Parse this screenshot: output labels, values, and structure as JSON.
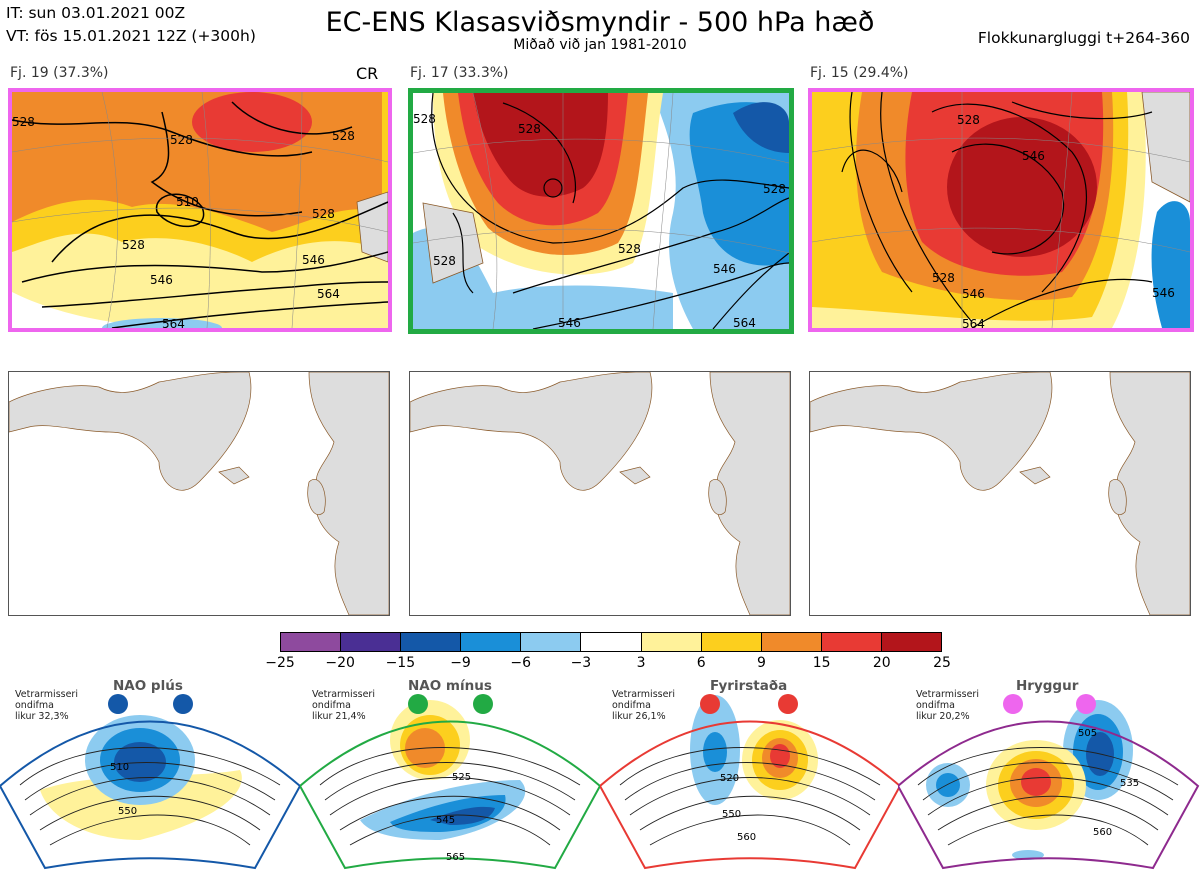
{
  "header": {
    "it": "IT: sun 03.01.2021 00Z",
    "vt": "VT: fös 15.01.2021 12Z  (+300h)",
    "title": "EC-ENS Klasasviðsmyndir - 500 hPa hæð",
    "subtitle": "Miðað við jan 1981-2010",
    "window": "Flokkunargluggi t+264-360"
  },
  "panels": [
    {
      "label": "Fj. 19 (37.3%)",
      "tag": "CR",
      "border_color": "#ee66ee",
      "contours": [
        "528",
        "528",
        "528",
        "510",
        "528",
        "546",
        "564",
        "564",
        "546",
        "528"
      ]
    },
    {
      "label": "Fj. 17 (33.3%)",
      "tag": "",
      "border_color": "#22aa44",
      "contours": [
        "528",
        "528",
        "528",
        "528",
        "528",
        "546",
        "546",
        "564"
      ]
    },
    {
      "label": "Fj. 15 (29.4%)",
      "tag": "",
      "border_color": "#ee66ee",
      "contours": [
        "528",
        "546",
        "528",
        "546",
        "564",
        "546"
      ]
    }
  ],
  "colorbar": {
    "colors": [
      "#8e4a9e",
      "#4a2f94",
      "#1458a8",
      "#1a8fd8",
      "#8ccbf0",
      "#ffffff",
      "#fff29a",
      "#fccf1e",
      "#f08a2a",
      "#e83a34",
      "#b3151b"
    ],
    "ticks": [
      "−25",
      "−20",
      "−15",
      "−9",
      "−6",
      "−3",
      "3",
      "6",
      "9",
      "15",
      "20",
      "25"
    ]
  },
  "regimes": [
    {
      "name": "NAO plús",
      "note": "Vetrarmisseri\nondifma\nlikur 32,3%",
      "color": "#1458a8",
      "contours": [
        "510",
        "550"
      ]
    },
    {
      "name": "NAO mínus",
      "note": "Vetrarmisseri\nondifma\nlikur 21,4%",
      "color": "#22aa44",
      "contours": [
        "525",
        "545",
        "565"
      ]
    },
    {
      "name": "Fyrirstaða",
      "note": "Vetrarmisseri\nondifma\nlikur 26,1%",
      "color": "#e83a34",
      "contours": [
        "520",
        "550",
        "560"
      ]
    },
    {
      "name": "Hryggur",
      "note": "Vetrarmisseri\nondifma\nlikur 20,2%",
      "color": "#ee66ee",
      "contours": [
        "505",
        "535",
        "560"
      ]
    }
  ]
}
